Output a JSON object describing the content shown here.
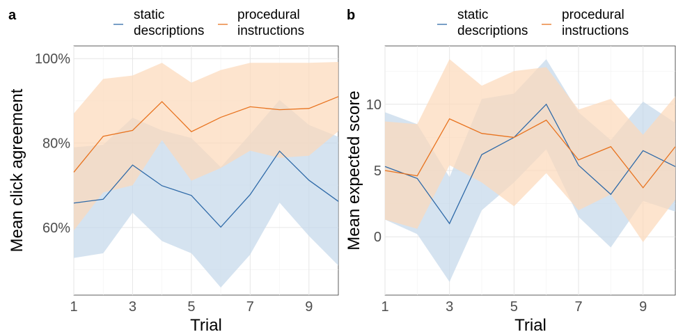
{
  "legend": {
    "series": [
      {
        "label_line1": "static",
        "label_line2": "descriptions",
        "color": "#2f6aa8",
        "band_color": "#c5d8ea"
      },
      {
        "label_line1": "procedural",
        "label_line2": "instructions",
        "color": "#e8731f",
        "band_color": "#fcd9bb"
      }
    ]
  },
  "chart_data": [
    {
      "panel": "a",
      "type": "line",
      "xlabel": "Trial",
      "ylabel": "Mean click agreement",
      "xlim": [
        1,
        10
      ],
      "ylim": [
        44,
        103
      ],
      "x_ticks": [
        1,
        3,
        5,
        7,
        9
      ],
      "y_ticks": [
        60,
        80,
        100
      ],
      "y_tick_labels": [
        "60%",
        "80%",
        "100%"
      ],
      "x": [
        1,
        2,
        3,
        4,
        5,
        6,
        7,
        8,
        9,
        10
      ],
      "series": [
        {
          "name": "static descriptions",
          "values": [
            65.8,
            66.7,
            74.8,
            69.9,
            67.6,
            60.1,
            67.8,
            78.1,
            71.2,
            66.2
          ],
          "lower": [
            52.8,
            53.9,
            63.5,
            56.8,
            53.9,
            45.8,
            53.6,
            65.9,
            58.0,
            51.0
          ],
          "upper": [
            79.0,
            79.6,
            86.0,
            83.0,
            81.2,
            74.3,
            82.1,
            90.2,
            84.3,
            81.5
          ]
        },
        {
          "name": "procedural instructions",
          "values": [
            73.1,
            81.6,
            83.0,
            89.8,
            82.7,
            86.1,
            88.6,
            87.9,
            88.2,
            91.0
          ],
          "lower": [
            59.3,
            68.3,
            70.0,
            80.7,
            71.1,
            74.1,
            78.2,
            76.5,
            77.0,
            82.8
          ],
          "upper": [
            87.0,
            95.2,
            96.0,
            99.0,
            94.3,
            97.3,
            99.0,
            99.0,
            99.0,
            99.2
          ]
        }
      ]
    },
    {
      "panel": "b",
      "type": "line",
      "xlabel": "Trial",
      "ylabel": "Mean expected score",
      "xlim": [
        1,
        10
      ],
      "ylim": [
        -4.4,
        14.4
      ],
      "x_ticks": [
        1,
        3,
        5,
        7,
        9
      ],
      "y_ticks": [
        0,
        5,
        10
      ],
      "y_tick_labels": [
        "0",
        "5",
        "10"
      ],
      "x": [
        1,
        2,
        3,
        4,
        5,
        6,
        7,
        8,
        9,
        10
      ],
      "series": [
        {
          "name": "static descriptions",
          "values": [
            5.3,
            4.4,
            1.0,
            6.2,
            7.5,
            10.0,
            5.4,
            3.2,
            6.5,
            5.3
          ],
          "lower": [
            1.3,
            0.2,
            -3.4,
            2.0,
            4.1,
            6.6,
            1.5,
            -0.8,
            2.7,
            1.9
          ],
          "upper": [
            9.4,
            8.5,
            4.5,
            10.4,
            10.8,
            13.4,
            9.4,
            7.3,
            10.2,
            8.6
          ]
        },
        {
          "name": "procedural instructions",
          "values": [
            5.0,
            4.6,
            8.9,
            7.8,
            7.5,
            8.8,
            5.8,
            6.8,
            3.7,
            6.8
          ],
          "lower": [
            1.3,
            0.6,
            5.4,
            4.1,
            2.3,
            4.8,
            2.0,
            3.2,
            -0.4,
            2.8
          ],
          "upper": [
            8.7,
            8.5,
            13.4,
            11.4,
            12.5,
            12.8,
            9.6,
            10.4,
            7.7,
            10.6
          ]
        }
      ]
    }
  ]
}
